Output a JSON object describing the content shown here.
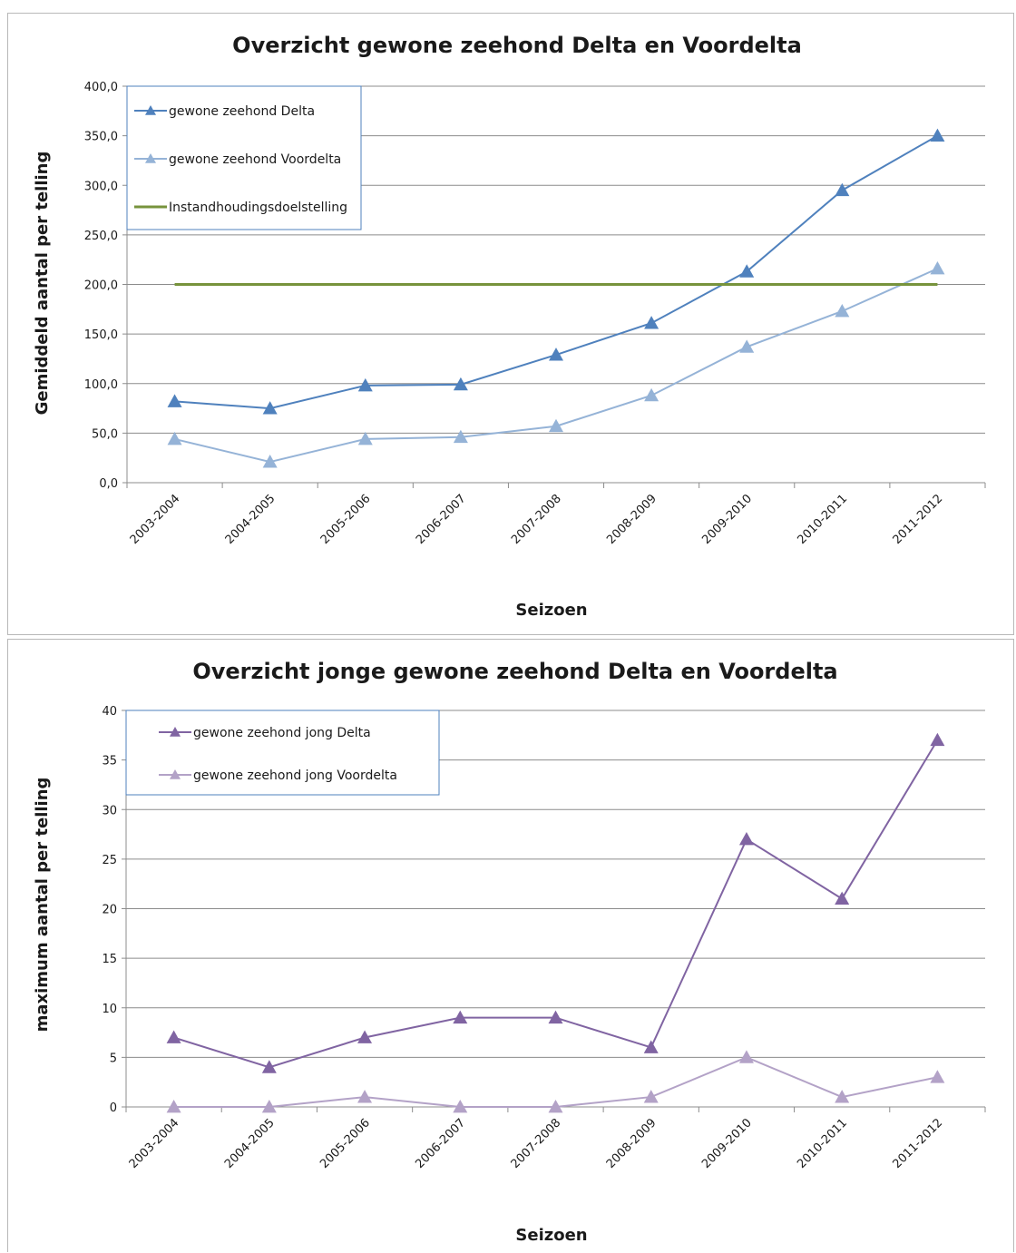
{
  "chart_data": [
    {
      "type": "line",
      "title": "Overzicht gewone zeehond Delta en Voordelta",
      "xlabel": "Seizoen",
      "ylabel": "Gemiddeld aantal per telling",
      "ylim": [
        0,
        400
      ],
      "ytick_labels": [
        "0,0",
        "50,0",
        "100,0",
        "150,0",
        "200,0",
        "250,0",
        "300,0",
        "350,0",
        "400,0"
      ],
      "categories": [
        "2003-2004",
        "2004-2005",
        "2005-2006",
        "2006-2007",
        "2007-2008",
        "2008-2009",
        "2009-2010",
        "2010-2011",
        "2011-2012"
      ],
      "grid": true,
      "legend_position": "top-left",
      "series": [
        {
          "name": "gewone zeehond Delta",
          "color": "#4f81bd",
          "marker": "triangle",
          "values": [
            82,
            75,
            98,
            99,
            129,
            161,
            213,
            295,
            350
          ]
        },
        {
          "name": "gewone zeehond Voordelta",
          "color": "#95b3d7",
          "marker": "triangle",
          "values": [
            44,
            21,
            44,
            46,
            57,
            88,
            137,
            173,
            216
          ]
        },
        {
          "name": "Instandhoudingsdoelstelling",
          "color": "#77933c",
          "marker": "none",
          "values": [
            200,
            200,
            200,
            200,
            200,
            200,
            200,
            200,
            200
          ]
        }
      ]
    },
    {
      "type": "line",
      "title": "Overzicht jonge gewone zeehond Delta en Voordelta",
      "xlabel": "Seizoen",
      "ylabel": "maximum aantal per telling",
      "ylim": [
        0,
        40
      ],
      "ytick_labels": [
        "0",
        "5",
        "10",
        "15",
        "20",
        "25",
        "30",
        "35",
        "40"
      ],
      "categories": [
        "2003-2004",
        "2004-2005",
        "2005-2006",
        "2006-2007",
        "2007-2008",
        "2008-2009",
        "2009-2010",
        "2010-2011",
        "2011-2012"
      ],
      "grid": true,
      "legend_position": "top-left",
      "series": [
        {
          "name": "gewone zeehond jong Delta",
          "color": "#8064a2",
          "marker": "triangle",
          "values": [
            7,
            4,
            7,
            9,
            9,
            6,
            27,
            21,
            37
          ]
        },
        {
          "name": "gewone zeehond jong Voordelta",
          "color": "#b3a2c7",
          "marker": "triangle",
          "values": [
            0,
            0,
            1,
            0,
            0,
            1,
            5,
            1,
            3
          ]
        }
      ]
    }
  ]
}
